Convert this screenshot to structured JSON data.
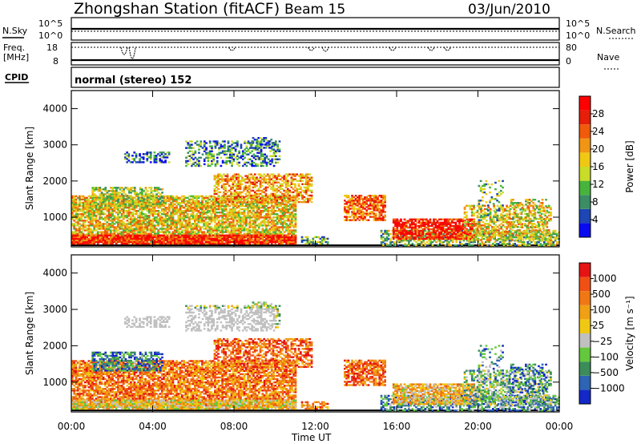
{
  "header": {
    "title": "Zhongshan Station (fitACF)",
    "beam": "Beam 15",
    "date": "03/Jun/2010"
  },
  "strip": {
    "nsky_label": "N.Sky",
    "nsky_top": "10^5",
    "nsky_bottom": "10^0",
    "nsearch_label": "N.Search",
    "nsearch_top": "10^5",
    "nsearch_bottom": "10^0",
    "freq_label_1": "Freq.",
    "freq_label_2": "[MHz]",
    "freq_top": "18",
    "freq_bottom": "8",
    "nave_label": "Nave",
    "nave_top": "80",
    "nave_bottom": "0",
    "cpid_label": "CPID",
    "cpid_value": "normal (stereo) 152"
  },
  "chart_data": [
    {
      "type": "heatmap",
      "name": "power",
      "ylabel": "Slant Range [km]",
      "xlabel": "Time UT",
      "xlim": [
        0,
        24
      ],
      "ylim": [
        180,
        4500
      ],
      "y_ticks": [
        "1000",
        "2000",
        "3000",
        "4000"
      ],
      "x_ticks": [
        "00:00",
        "04:00",
        "08:00",
        "12:00",
        "16:00",
        "20:00",
        "00:00"
      ],
      "colorbar_label": "Power [dB]",
      "colorbar_ticks": [
        "4",
        "8",
        "12",
        "16",
        "20",
        "24",
        "28"
      ],
      "colorbar_colors": [
        "#0a0af0",
        "#1e46b4",
        "#3c8c64",
        "#46b43c",
        "#c8dc28",
        "#f0c814",
        "#f09614",
        "#f05a0a",
        "#e61e0a",
        "#ff0000"
      ]
    },
    {
      "type": "heatmap",
      "name": "velocity",
      "ylabel": "Slant Range [km]",
      "xlabel": "Time UT",
      "xlim": [
        0,
        24
      ],
      "ylim": [
        180,
        4500
      ],
      "y_ticks": [
        "1000",
        "2000",
        "3000",
        "4000"
      ],
      "x_ticks": [
        "00:00",
        "04:00",
        "08:00",
        "12:00",
        "16:00",
        "20:00",
        "00:00"
      ],
      "colorbar_label": "Velocity [m s⁻¹]",
      "colorbar_ticks": [
        "1000",
        "500",
        "100",
        "25",
        "−25",
        "−100",
        "−500",
        "−1000"
      ],
      "colorbar_colors": [
        "#1428c8",
        "#2d64b4",
        "#3c8c5a",
        "#64c83c",
        "#c0c0c0",
        "#f0c814",
        "#f0a014",
        "#f07814",
        "#f05014",
        "#e61414"
      ]
    }
  ],
  "axis_title": "Time UT"
}
